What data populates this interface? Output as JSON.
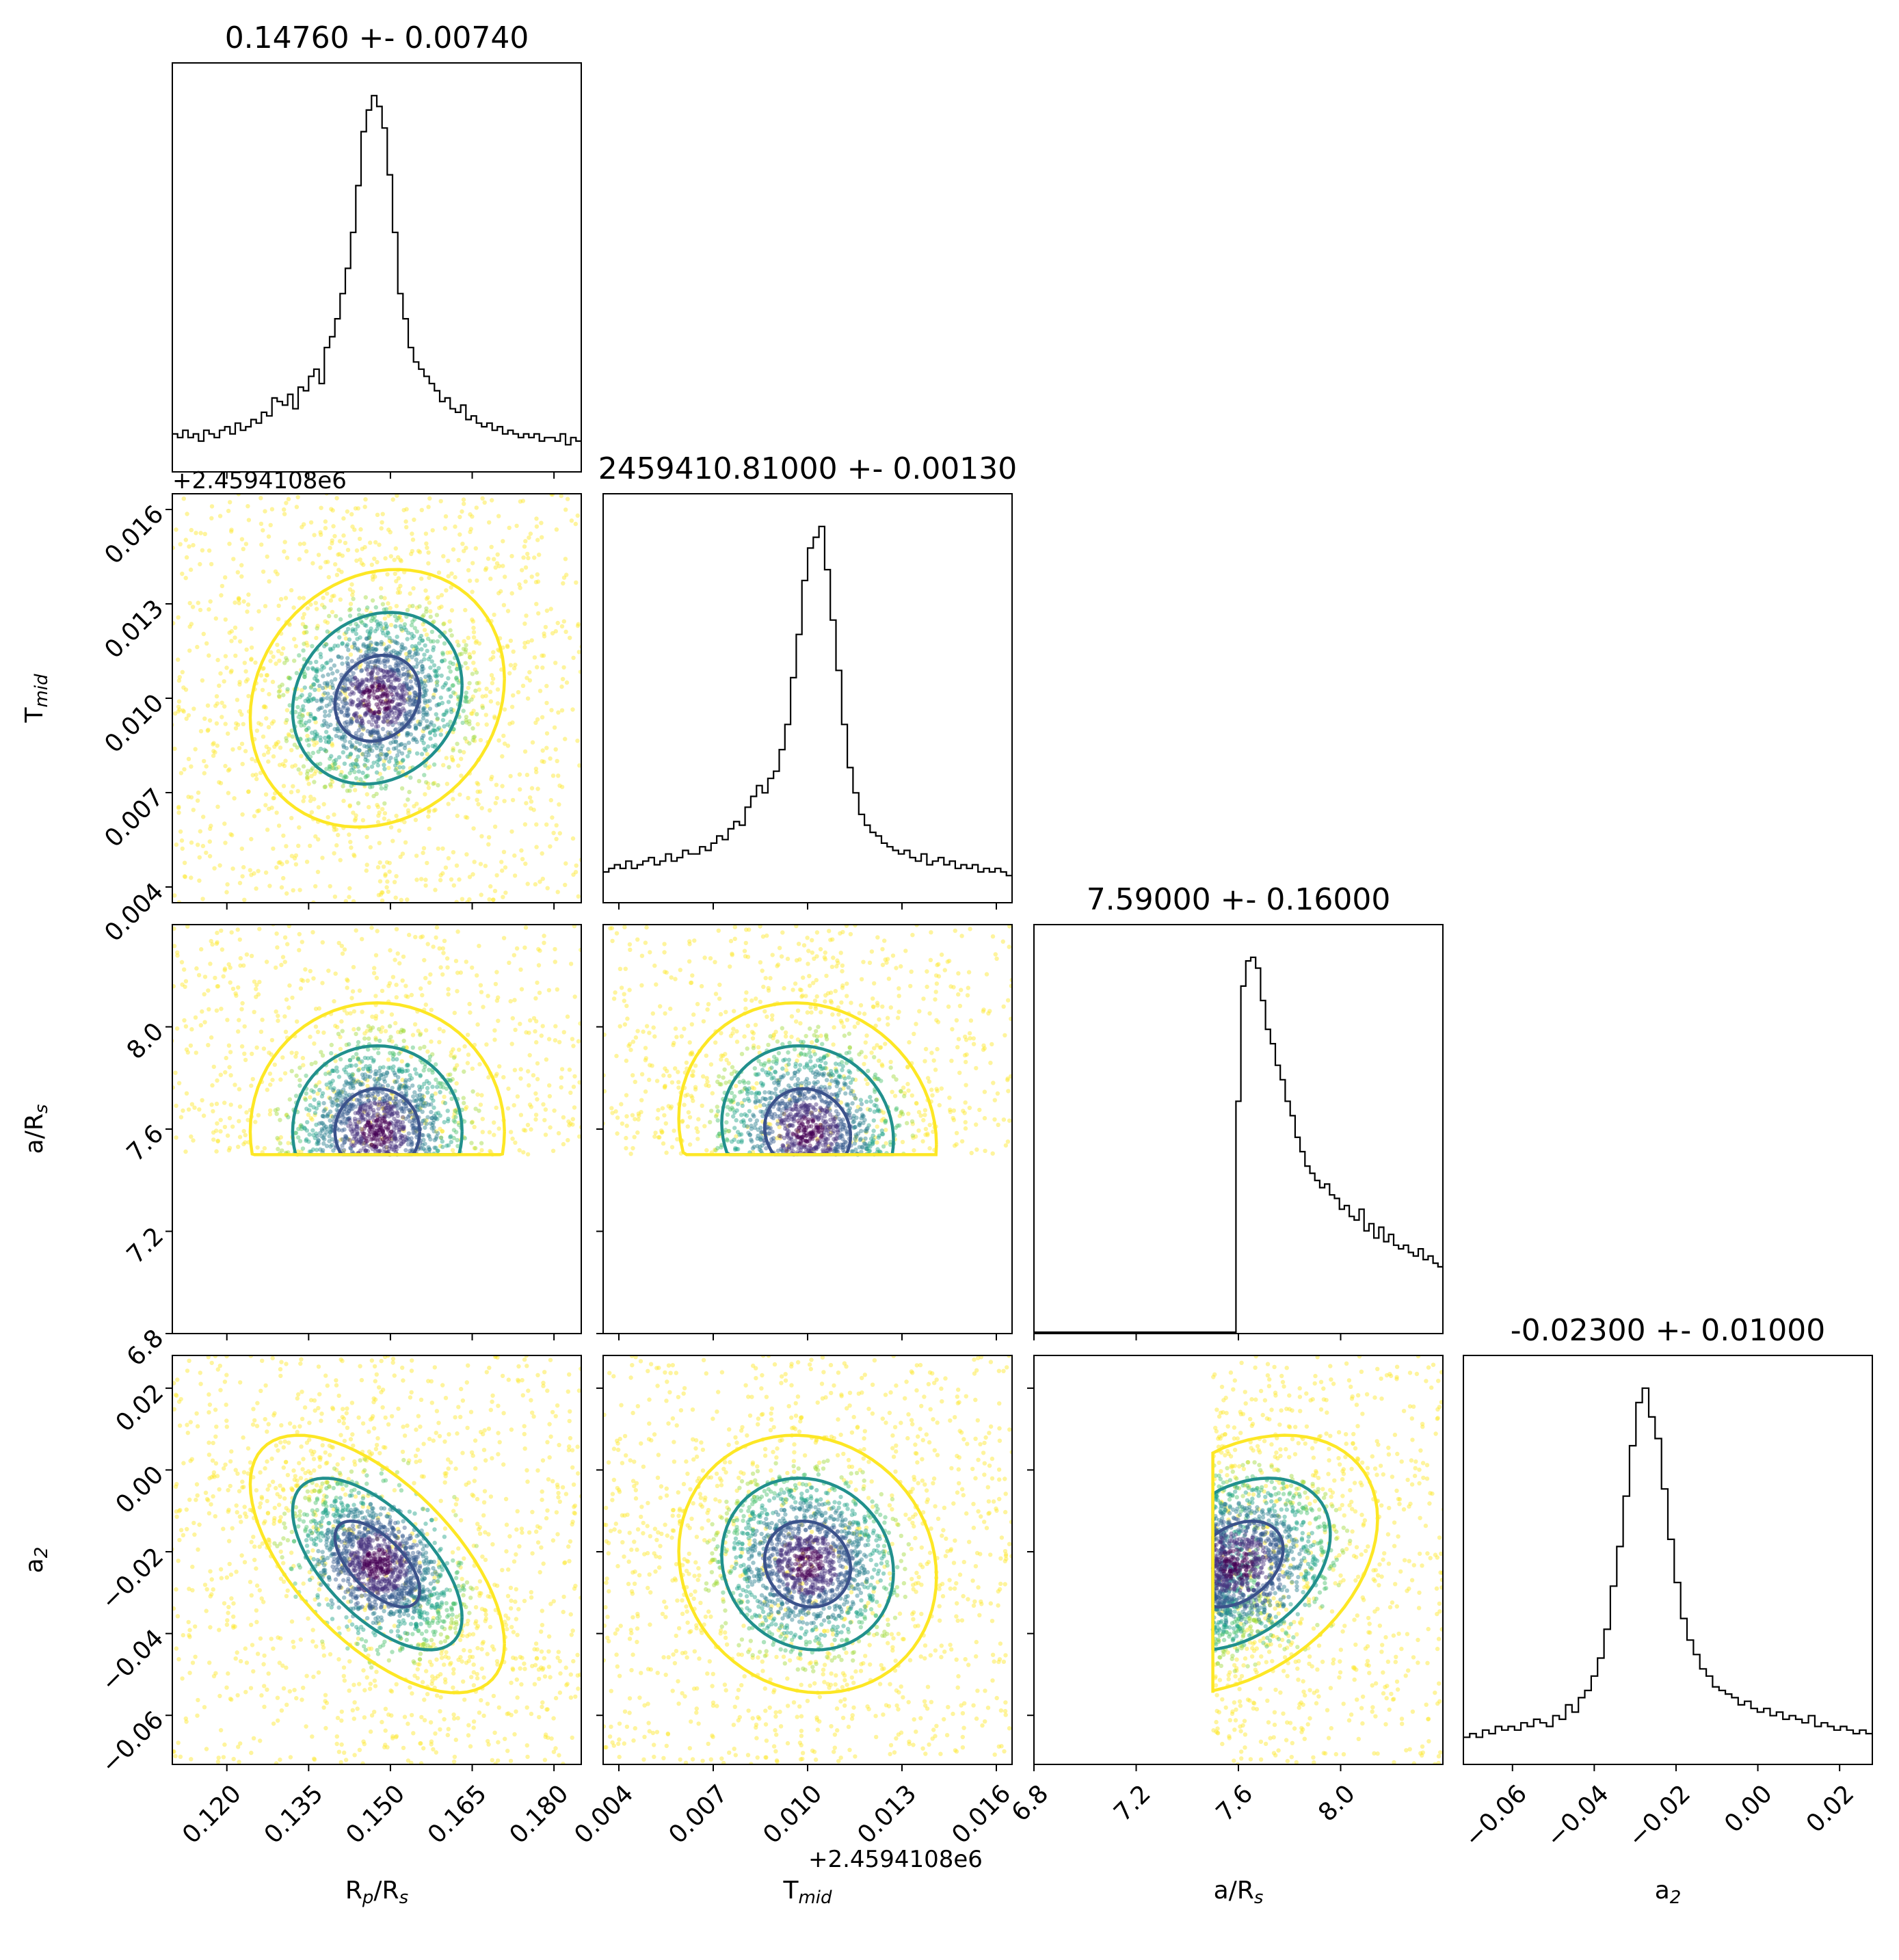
{
  "chart_data": {
    "type": "corner",
    "parameters": [
      {
        "key": "rp",
        "label": "R_p/R_s",
        "label_main": "R",
        "label_sub": "p",
        "label_tail": "/R",
        "label_sub2": "s",
        "title": "0.14760 +- 0.00740",
        "range": [
          0.11,
          0.185
        ],
        "ticks": [
          "0.120",
          "0.135",
          "0.150",
          "0.165",
          "0.180"
        ],
        "tick_values": [
          0.12,
          0.135,
          0.15,
          0.165,
          0.18
        ],
        "offset_text": "",
        "center": 0.1476,
        "sigma": 0.0074
      },
      {
        "key": "tmid",
        "label": "T_mid",
        "label_main": "T",
        "label_sub": "mid",
        "label_tail": "",
        "label_sub2": "",
        "title": "2459410.81000 +- 0.00130",
        "range": [
          0.0035,
          0.0165
        ],
        "ticks": [
          "0.004",
          "0.007",
          "0.010",
          "0.013",
          "0.016"
        ],
        "tick_values": [
          0.004,
          0.007,
          0.01,
          0.013,
          0.016
        ],
        "offset_text": "+2.4594108e6",
        "center": 0.01,
        "sigma": 0.0013
      },
      {
        "key": "ars",
        "label": "a/R_s",
        "label_main": "a/R",
        "label_sub": "s",
        "label_tail": "",
        "label_sub2": "",
        "title": "7.59000 +- 0.16000",
        "range": [
          6.8,
          8.4
        ],
        "ticks": [
          "6.8",
          "7.2",
          "7.6",
          "8.0"
        ],
        "tick_values": [
          6.8,
          7.2,
          7.6,
          8.0
        ],
        "offset_text": "",
        "center": 7.59,
        "sigma": 0.16,
        "lower_bound": 7.5
      },
      {
        "key": "a2",
        "label": "a_2",
        "label_main": "a",
        "label_sub": "2",
        "label_tail": "",
        "label_sub2": "",
        "title": "-0.02300 +- 0.01000",
        "range": [
          -0.072,
          0.028
        ],
        "ticks": [
          "−0.06",
          "−0.04",
          "−0.02",
          "0.00",
          "0.02"
        ],
        "tick_values": [
          -0.06,
          -0.04,
          -0.02,
          0.0,
          0.02
        ],
        "offset_text": "",
        "center": -0.023,
        "sigma": 0.01
      }
    ],
    "histograms": {
      "rp": [
        0.06,
        0.05,
        0.07,
        0.05,
        0.06,
        0.04,
        0.07,
        0.06,
        0.05,
        0.07,
        0.08,
        0.06,
        0.09,
        0.07,
        0.08,
        0.1,
        0.09,
        0.12,
        0.11,
        0.16,
        0.15,
        0.14,
        0.17,
        0.13,
        0.19,
        0.18,
        0.22,
        0.24,
        0.2,
        0.3,
        0.33,
        0.38,
        0.45,
        0.52,
        0.62,
        0.75,
        0.9,
        0.96,
        1.0,
        0.97,
        0.91,
        0.78,
        0.62,
        0.45,
        0.38,
        0.3,
        0.26,
        0.24,
        0.22,
        0.2,
        0.18,
        0.15,
        0.16,
        0.13,
        0.12,
        0.14,
        0.1,
        0.11,
        0.09,
        0.08,
        0.09,
        0.07,
        0.08,
        0.06,
        0.07,
        0.06,
        0.05,
        0.06,
        0.05,
        0.06,
        0.04,
        0.05,
        0.05,
        0.04,
        0.06,
        0.03,
        0.05,
        0.04
      ],
      "tmid": [
        0.04,
        0.05,
        0.06,
        0.05,
        0.07,
        0.05,
        0.06,
        0.07,
        0.08,
        0.06,
        0.07,
        0.09,
        0.07,
        0.08,
        0.1,
        0.09,
        0.09,
        0.11,
        0.1,
        0.12,
        0.14,
        0.13,
        0.16,
        0.18,
        0.17,
        0.22,
        0.25,
        0.28,
        0.26,
        0.3,
        0.32,
        0.38,
        0.45,
        0.58,
        0.7,
        0.85,
        0.94,
        0.97,
        1.0,
        0.88,
        0.74,
        0.6,
        0.45,
        0.33,
        0.26,
        0.2,
        0.17,
        0.15,
        0.14,
        0.12,
        0.11,
        0.1,
        0.09,
        0.1,
        0.08,
        0.07,
        0.09,
        0.06,
        0.07,
        0.08,
        0.06,
        0.07,
        0.05,
        0.06,
        0.05,
        0.06,
        0.04,
        0.05,
        0.04,
        0.05,
        0.04,
        0.03
      ],
      "ars": [
        0,
        0,
        0,
        0,
        0,
        0,
        0,
        0,
        0,
        0,
        0,
        0,
        0,
        0,
        0,
        0,
        0,
        0,
        0,
        0,
        0,
        0,
        0,
        0,
        0,
        0,
        0,
        0,
        0,
        0,
        0,
        0,
        0,
        0,
        0,
        0,
        0,
        0,
        0,
        0,
        0,
        0.6,
        0.92,
        0.99,
        1.0,
        0.97,
        0.88,
        0.8,
        0.76,
        0.7,
        0.66,
        0.6,
        0.56,
        0.5,
        0.46,
        0.42,
        0.4,
        0.38,
        0.36,
        0.37,
        0.34,
        0.33,
        0.3,
        0.31,
        0.28,
        0.27,
        0.3,
        0.24,
        0.26,
        0.22,
        0.25,
        0.21,
        0.23,
        0.2,
        0.19,
        0.2,
        0.18,
        0.17,
        0.19,
        0.16,
        0.17,
        0.15,
        0.14
      ],
      "a2": [
        0.03,
        0.04,
        0.03,
        0.05,
        0.04,
        0.06,
        0.05,
        0.06,
        0.05,
        0.07,
        0.06,
        0.08,
        0.07,
        0.06,
        0.09,
        0.08,
        0.12,
        0.1,
        0.14,
        0.16,
        0.2,
        0.25,
        0.33,
        0.45,
        0.56,
        0.7,
        0.84,
        0.96,
        1.0,
        0.92,
        0.86,
        0.72,
        0.58,
        0.46,
        0.36,
        0.3,
        0.26,
        0.22,
        0.2,
        0.17,
        0.16,
        0.15,
        0.14,
        0.12,
        0.13,
        0.11,
        0.1,
        0.11,
        0.09,
        0.1,
        0.08,
        0.09,
        0.08,
        0.07,
        0.09,
        0.06,
        0.07,
        0.06,
        0.05,
        0.06,
        0.05,
        0.04,
        0.05,
        0.04
      ]
    },
    "pairs": [
      {
        "x": "rp",
        "y": "tmid",
        "rho": 0.15
      },
      {
        "x": "rp",
        "y": "ars",
        "rho": 0.0
      },
      {
        "x": "tmid",
        "y": "ars",
        "rho": -0.1
      },
      {
        "x": "rp",
        "y": "a2",
        "rho": -0.62
      },
      {
        "x": "tmid",
        "y": "a2",
        "rho": -0.1
      },
      {
        "x": "ars",
        "y": "a2",
        "rho": 0.35
      }
    ],
    "contour_colors": [
      "#3b528b",
      "#21908d",
      "#fde725"
    ],
    "point_colors": [
      "#440154",
      "#46337f",
      "#365c8d",
      "#277f8e",
      "#1fa187",
      "#4ac16d",
      "#a0da39",
      "#fde725"
    ],
    "histogram_color": "#000000"
  }
}
